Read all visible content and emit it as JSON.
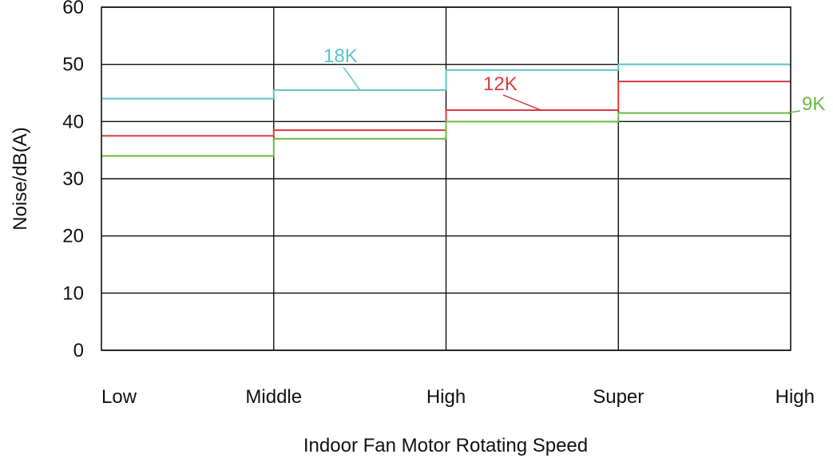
{
  "chart_data": {
    "type": "line",
    "step": true,
    "xlabel": "Indoor Fan Motor Rotating Speed",
    "ylabel": "Noise/dB(A)",
    "ylim": [
      0,
      60
    ],
    "yticks": [
      "0",
      "10",
      "20",
      "30",
      "40",
      "50",
      "60"
    ],
    "xtick_labels": [
      "Low",
      "Middle",
      "High",
      "Super",
      "High"
    ],
    "categories": [
      "Low",
      "Middle",
      "High",
      "Super High"
    ],
    "grid": true,
    "series": [
      {
        "name": "18K",
        "color": "#5bc4cc",
        "values": [
          44,
          45.5,
          49,
          50
        ]
      },
      {
        "name": "12K",
        "color": "#e0393e",
        "values": [
          37.5,
          38.5,
          42,
          47
        ]
      },
      {
        "name": "9K",
        "color": "#6ab945",
        "values": [
          34,
          37,
          40,
          41.5
        ]
      }
    ]
  }
}
